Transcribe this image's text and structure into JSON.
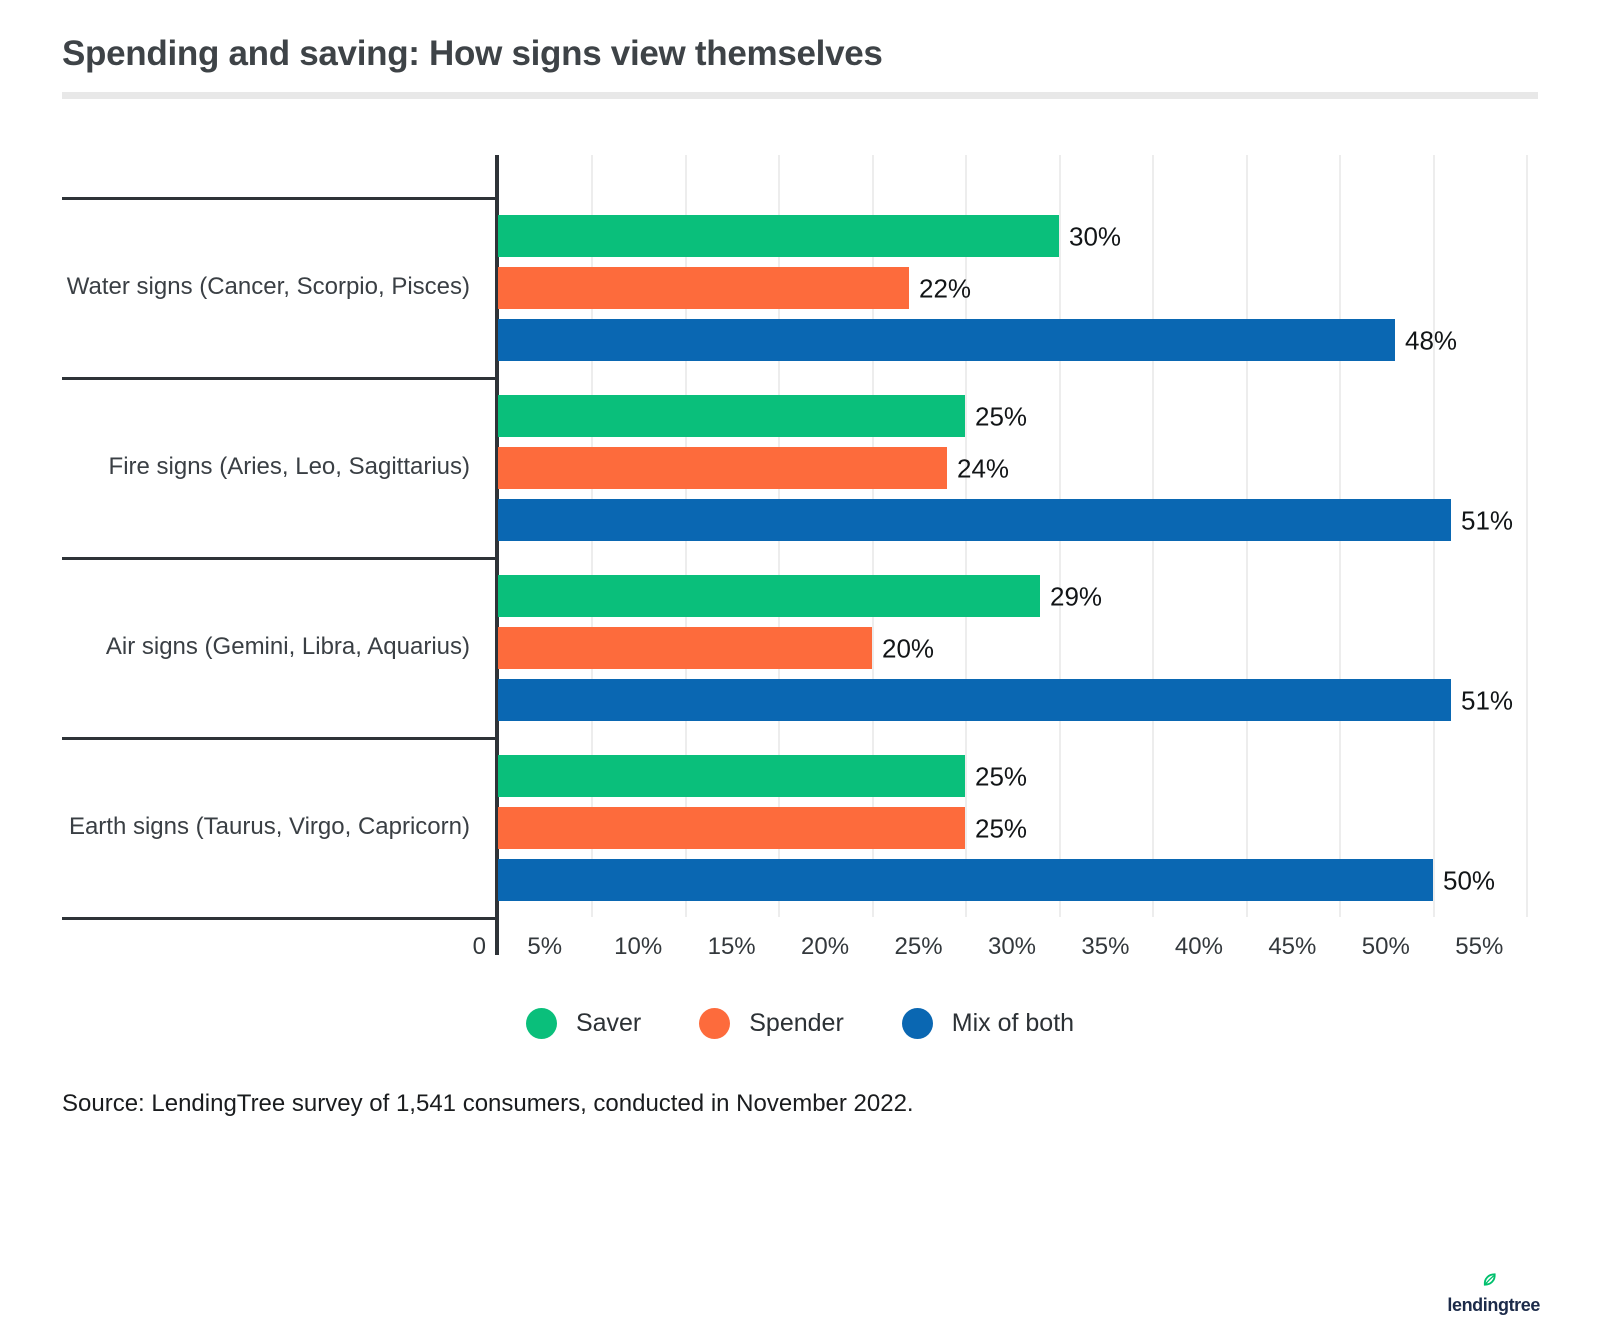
{
  "title": "Spending and saving: How signs view themselves",
  "chart_data": {
    "type": "bar",
    "orientation": "horizontal",
    "title": "Spending and saving: How signs view themselves",
    "categories": [
      "Water signs (Cancer, Scorpio, Pisces)",
      "Fire signs (Aries, Leo, Sagittarius)",
      "Air signs (Gemini, Libra, Aquarius)",
      "Earth signs (Taurus, Virgo, Capricorn)"
    ],
    "series": [
      {
        "name": "Saver",
        "color": "#0abf7b",
        "values": [
          30,
          25,
          29,
          25
        ]
      },
      {
        "name": "Spender",
        "color": "#fd6b3c",
        "values": [
          22,
          24,
          20,
          25
        ]
      },
      {
        "name": "Mix of both",
        "color": "#0a67b2",
        "values": [
          48,
          51,
          51,
          50
        ]
      }
    ],
    "value_suffix": "%",
    "xlim": [
      0,
      55
    ],
    "x_ticks": [
      "0",
      "5%",
      "10%",
      "15%",
      "20%",
      "25%",
      "30%",
      "35%",
      "40%",
      "45%",
      "50%",
      "55%"
    ],
    "grid": true,
    "legend_position": "bottom"
  },
  "source": "Source: LendingTree survey of 1,541 consumers, conducted in November 2022.",
  "logo": {
    "text": "lendingtree",
    "leaf_color": "#00c06d"
  },
  "colors": {
    "saver": "#0abf7b",
    "spender": "#fd6b3c",
    "mix_of_both": "#0a67b2",
    "axis_line": "#2e3338",
    "gridline": "#ededed",
    "title_rule": "#e8e8e8"
  }
}
